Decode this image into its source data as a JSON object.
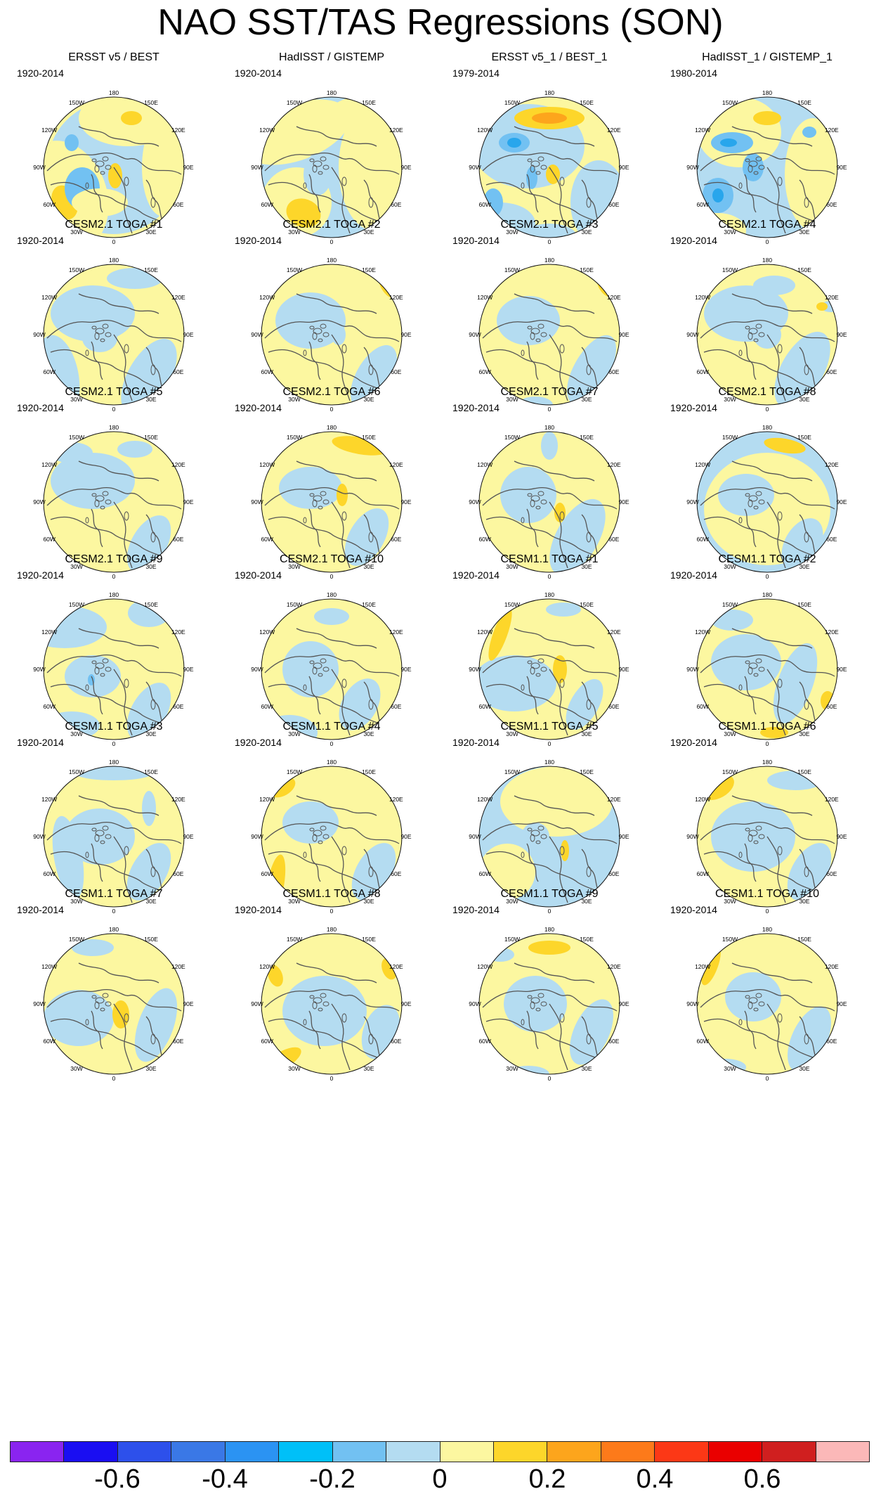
{
  "title": "NAO SST/TAS Regressions (SON)",
  "lon_labels": [
    "180",
    "150E",
    "120E",
    "90E",
    "60E",
    "30E",
    "0",
    "30W",
    "60W",
    "90W",
    "120W",
    "150W"
  ],
  "colors": {
    "neg_light": "#b4dcf1",
    "neg_med": "#72c1f2",
    "neg_dark": "#28a6ec",
    "pos_light": "#fcf7a0",
    "pos_med": "#fdd62a",
    "pos_dark": "#fda51c",
    "coast": "#555555"
  },
  "colorbar": {
    "colors": [
      "#8a24f0",
      "#1a0ef2",
      "#2d50eb",
      "#3a78e6",
      "#2b93f3",
      "#00c0f8",
      "#72c1f2",
      "#b4dcf1",
      "#fcf7a0",
      "#fdd62a",
      "#fda51c",
      "#fd7a1a",
      "#fc3816",
      "#ea0000",
      "#d01f1f",
      "#fbb8b8"
    ],
    "labels": [
      "-0.6",
      "-0.4",
      "-0.2",
      "0",
      "0.2",
      "0.4",
      "0.6"
    ]
  },
  "panels": [
    {
      "title": "ERSST v5 / BEST",
      "years": "1920-2014"
    },
    {
      "title": "HadISST / GISTEMP",
      "years": "1920-2014"
    },
    {
      "title": "ERSST v5_1 / BEST_1",
      "years": "1979-2014"
    },
    {
      "title": "HadISST_1 / GISTEMP_1",
      "years": "1980-2014"
    },
    {
      "title": "CESM2.1 TOGA #1",
      "years": "1920-2014"
    },
    {
      "title": "CESM2.1 TOGA #2",
      "years": "1920-2014"
    },
    {
      "title": "CESM2.1 TOGA #3",
      "years": "1920-2014"
    },
    {
      "title": "CESM2.1 TOGA #4",
      "years": "1920-2014"
    },
    {
      "title": "CESM2.1 TOGA #5",
      "years": "1920-2014"
    },
    {
      "title": "CESM2.1 TOGA #6",
      "years": "1920-2014"
    },
    {
      "title": "CESM2.1 TOGA #7",
      "years": "1920-2014"
    },
    {
      "title": "CESM2.1 TOGA #8",
      "years": "1920-2014"
    },
    {
      "title": "CESM2.1 TOGA #9",
      "years": "1920-2014"
    },
    {
      "title": "CESM2.1 TOGA #10",
      "years": "1920-2014"
    },
    {
      "title": "CESM1.1 TOGA #1",
      "years": "1920-2014"
    },
    {
      "title": "CESM1.1 TOGA #2",
      "years": "1920-2014"
    },
    {
      "title": "CESM1.1 TOGA #3",
      "years": "1920-2014"
    },
    {
      "title": "CESM1.1 TOGA #4",
      "years": "1920-2014"
    },
    {
      "title": "CESM1.1 TOGA #5",
      "years": "1920-2014"
    },
    {
      "title": "CESM1.1 TOGA #6",
      "years": "1920-2014"
    },
    {
      "title": "CESM1.1 TOGA #7",
      "years": "1920-2014"
    },
    {
      "title": "CESM1.1 TOGA #8",
      "years": "1920-2014"
    },
    {
      "title": "CESM1.1 TOGA #9",
      "years": "1920-2014"
    },
    {
      "title": "CESM1.1 TOGA #10",
      "years": "1920-2014"
    }
  ]
}
